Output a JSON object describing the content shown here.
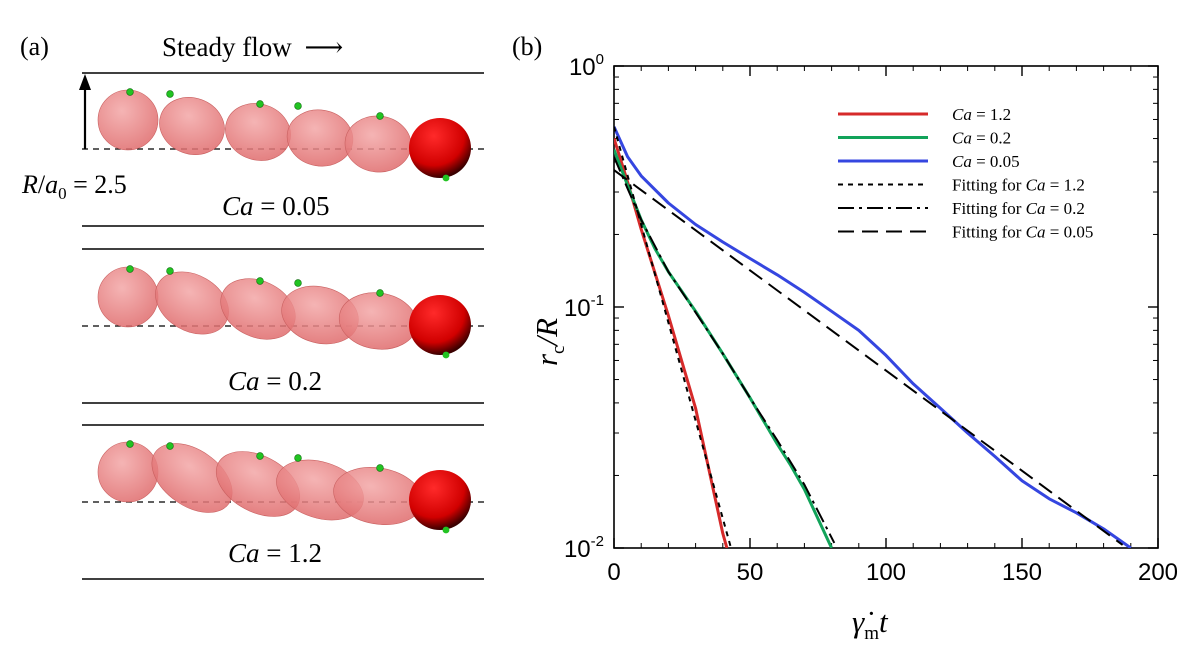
{
  "panel_a": {
    "label": "(a)",
    "flow_title": "Steady flow",
    "flow_arrow": "⟶",
    "radius_label": {
      "var": "R",
      "slash": "/",
      "sub_var": "a",
      "sub": "0",
      "eq": " = ",
      "value": "2.5"
    },
    "cases": [
      {
        "ca_var": "Ca",
        "eq": " = ",
        "ca_value": "0.05",
        "angles": [
          0,
          20,
          18,
          10,
          5
        ],
        "trail": 1.0
      },
      {
        "ca_var": "Ca",
        "eq": " = ",
        "ca_value": "0.2",
        "angles": [
          0,
          30,
          25,
          15,
          8
        ],
        "trail": 1.0
      },
      {
        "ca_var": "Ca",
        "eq": " = ",
        "ca_value": "1.2",
        "angles": [
          0,
          35,
          28,
          18,
          10
        ],
        "trail": 1.0
      }
    ],
    "colors": {
      "droplet_faded": "#e77f80",
      "droplet_solid": "#e00000",
      "tracer": "#22c322"
    }
  },
  "panel_b": {
    "label": "(b)"
  },
  "chart_data": {
    "type": "line",
    "xlabel": {
      "main": "γ̇",
      "sub": "m",
      "tail": "t"
    },
    "ylabel": {
      "main": "r",
      "sub": "c",
      "tail": "/R"
    },
    "xlim": [
      0,
      200
    ],
    "ylim_log10": [
      -2,
      0
    ],
    "x_ticks": [
      {
        "value": 0,
        "label": "0"
      },
      {
        "value": 50,
        "label": "50"
      },
      {
        "value": 100,
        "label": "100"
      },
      {
        "value": 150,
        "label": "150"
      },
      {
        "value": 200,
        "label": "200"
      }
    ],
    "y_ticks": [
      {
        "value": 0.01,
        "base": "10",
        "exp": "-2"
      },
      {
        "value": 0.1,
        "base": "10",
        "exp": "-1"
      },
      {
        "value": 1,
        "base": "10",
        "exp": "0"
      }
    ],
    "legend_position": "top-right",
    "series": [
      {
        "name_var": "Ca",
        "name_rest": " = 1.2",
        "color": "#d62a2a",
        "dash": "solid",
        "width": 3,
        "x": [
          0,
          5,
          10,
          20,
          30,
          40,
          41.5
        ],
        "y": [
          0.5,
          0.33,
          0.21,
          0.092,
          0.038,
          0.0115,
          0.01
        ]
      },
      {
        "name_var": "Ca",
        "name_rest": " = 0.2",
        "color": "#12a35a",
        "dash": "solid",
        "width": 3,
        "x": [
          0,
          5,
          10,
          15,
          20,
          30,
          40,
          50,
          60,
          65,
          70,
          80
        ],
        "y": [
          0.45,
          0.32,
          0.23,
          0.175,
          0.14,
          0.096,
          0.064,
          0.042,
          0.027,
          0.022,
          0.0175,
          0.01
        ]
      },
      {
        "name_var": "Ca",
        "name_rest": " = 0.05",
        "color": "#3546e0",
        "dash": "solid",
        "width": 3,
        "x": [
          0,
          5,
          10,
          20,
          30,
          40,
          50,
          60,
          70,
          80,
          90,
          100,
          110,
          120,
          130,
          140,
          150,
          160,
          170,
          180,
          190
        ],
        "y": [
          0.56,
          0.42,
          0.35,
          0.27,
          0.22,
          0.186,
          0.159,
          0.136,
          0.115,
          0.096,
          0.08,
          0.063,
          0.048,
          0.038,
          0.03,
          0.024,
          0.019,
          0.016,
          0.014,
          0.012,
          0.01
        ]
      },
      {
        "name_prefix": "Fitting for ",
        "name_var": "Ca",
        "name_rest": " = 1.2",
        "color": "#000000",
        "dash": "5,5",
        "width": 2,
        "x": [
          0,
          43
        ],
        "y": [
          0.56,
          0.01
        ]
      },
      {
        "name_prefix": "Fitting for ",
        "name_var": "Ca",
        "name_rest": " = 0.2",
        "color": "#000000",
        "dash": "16,5,3,5",
        "width": 2,
        "x": [
          0,
          5,
          10,
          20,
          30,
          40,
          50,
          60,
          70,
          81
        ],
        "y": [
          0.42,
          0.31,
          0.23,
          0.14,
          0.095,
          0.064,
          0.042,
          0.028,
          0.0183,
          0.0105
        ]
      },
      {
        "name_prefix": "Fitting for ",
        "name_var": "Ca",
        "name_rest": " = 0.05",
        "color": "#000000",
        "dash": "16,8",
        "width": 2,
        "x": [
          0,
          187
        ],
        "y": [
          0.37,
          0.0103
        ]
      }
    ]
  }
}
